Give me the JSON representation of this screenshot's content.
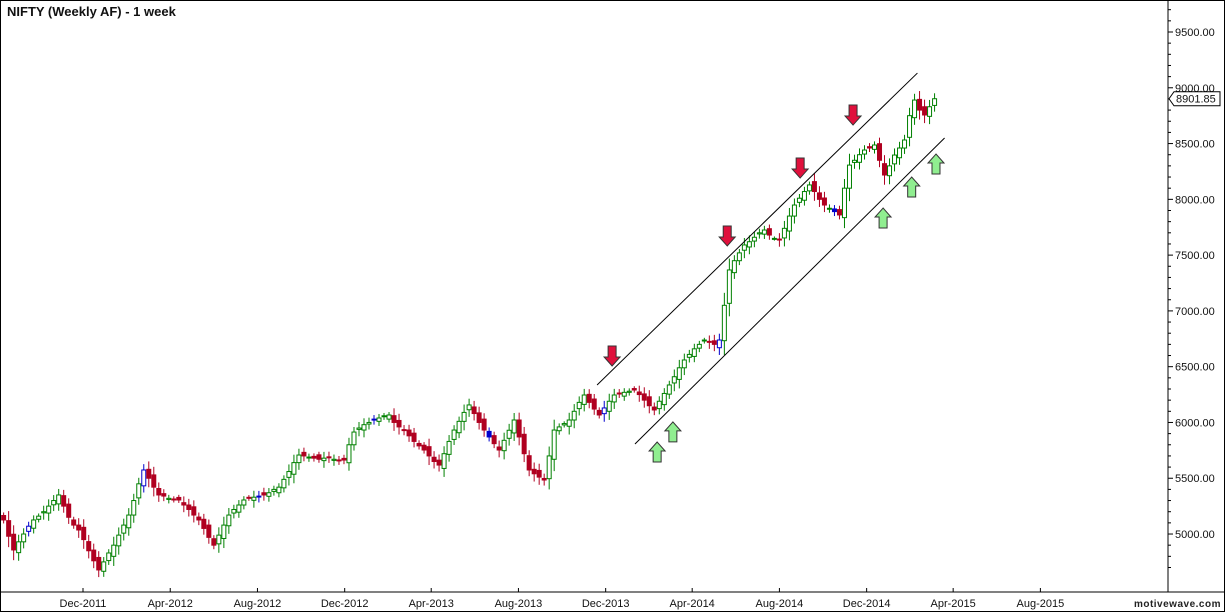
{
  "title": "NIFTY (Weekly AF) - 1 week",
  "brand": "motivewave.com",
  "last_price_label": "8901.85",
  "colors": {
    "up": "#008000",
    "down": "#b00020",
    "neutral": "#0000cc",
    "channel": "#000000",
    "down_arrow": "#e0103c",
    "up_arrow": "#90ee90"
  },
  "chart_data": {
    "type": "candlestick",
    "title": "NIFTY (Weekly AF) - 1 week",
    "ylim": [
      4500,
      9800
    ],
    "y_ticks": [
      5000,
      5500,
      6000,
      6500,
      7000,
      7500,
      8000,
      8500,
      9000,
      9500
    ],
    "y_tick_labels": [
      "5000.00",
      "5500.00",
      "6000.00",
      "6500.00",
      "7000.00",
      "7500.00",
      "8000.00",
      "8500.00",
      "9000.00",
      "9500.00"
    ],
    "x_tick_labels": [
      "Dec-2011",
      "Apr-2012",
      "Aug-2012",
      "Dec-2012",
      "Apr-2013",
      "Aug-2013",
      "Dec-2013",
      "Apr-2014",
      "Aug-2014",
      "Dec-2014",
      "Apr-2015",
      "Aug-2015"
    ],
    "x_tick_dates": [
      "2011-12-01",
      "2012-04-01",
      "2012-08-01",
      "2012-12-01",
      "2013-04-01",
      "2013-08-01",
      "2013-12-01",
      "2014-04-01",
      "2014-08-01",
      "2014-12-01",
      "2015-04-01",
      "2015-08-01"
    ],
    "first_week": "2011-08-12",
    "weekly_closes": [
      5126,
      4980,
      4857,
      4930,
      5000,
      5070,
      5126,
      5160,
      5200,
      5250,
      5300,
      5350,
      5250,
      5150,
      5080,
      5036,
      4950,
      4850,
      4760,
      4678,
      4750,
      4830,
      4900,
      4990,
      5080,
      5170,
      5300,
      5450,
      5574,
      5500,
      5420,
      5350,
      5340,
      5320,
      5310,
      5305,
      5260,
      5220,
      5170,
      5126,
      5050,
      4970,
      4900,
      4990,
      5080,
      5170,
      5220,
      5260,
      5305,
      5320,
      5330,
      5340,
      5350,
      5370,
      5400,
      5420,
      5490,
      5560,
      5640,
      5708,
      5700,
      5690,
      5680,
      5670,
      5680,
      5690,
      5670,
      5660,
      5663,
      5800,
      5914,
      5950,
      5980,
      6000,
      6022,
      6040,
      6060,
      6067,
      6000,
      5960,
      5932,
      5880,
      5830,
      5790,
      5753,
      5700,
      5650,
      5618,
      5720,
      5830,
      5932,
      6010,
      6090,
      6157,
      6080,
      6000,
      5932,
      5870,
      5810,
      5753,
      5840,
      5930,
      6022,
      5870,
      5720,
      5574,
      5540,
      5510,
      5484,
      5700,
      5932,
      5960,
      5990,
      6022,
      6100,
      6180,
      6246,
      6180,
      6120,
      6067,
      6130,
      6190,
      6246,
      6260,
      6270,
      6280,
      6291,
      6250,
      6200,
      6150,
      6112,
      6190,
      6260,
      6336,
      6410,
      6490,
      6560,
      6610,
      6660,
      6700,
      6739,
      6720,
      6700,
      6739,
      7050,
      7367,
      7450,
      7520,
      7591,
      7620,
      7660,
      7700,
      7725,
      7680,
      7650,
      7636,
      7740,
      7850,
      7949,
      8010,
      8070,
      8129,
      8070,
      8000,
      7949,
      7920,
      7890,
      7860,
      8100,
      8307,
      8350,
      8400,
      8442,
      8460,
      8487,
      8350,
      8218,
      8300,
      8397,
      8460,
      8532,
      8750,
      8890,
      8800,
      8756,
      8830,
      8901.85
    ],
    "last_close": 8901.85,
    "channels": [
      {
        "from": {
          "date": "2013-11-19",
          "price": 6336
        },
        "to": {
          "date": "2015-02-10",
          "price": 9132
        }
      },
      {
        "from": {
          "date": "2014-01-11",
          "price": 5807
        },
        "to": {
          "date": "2015-03-20",
          "price": 8550
        }
      }
    ],
    "down_arrows": [
      {
        "date": "2013-12-10",
        "price": 6506
      },
      {
        "date": "2014-05-20",
        "price": 7582
      },
      {
        "date": "2014-08-30",
        "price": 8191
      },
      {
        "date": "2014-11-12",
        "price": 8666
      }
    ],
    "up_arrows": [
      {
        "date": "2014-02-11",
        "price": 5825
      },
      {
        "date": "2014-03-05",
        "price": 6005
      },
      {
        "date": "2014-12-24",
        "price": 7922
      },
      {
        "date": "2015-02-02",
        "price": 8200
      },
      {
        "date": "2015-03-08",
        "price": 8406
      }
    ],
    "grid": false
  }
}
